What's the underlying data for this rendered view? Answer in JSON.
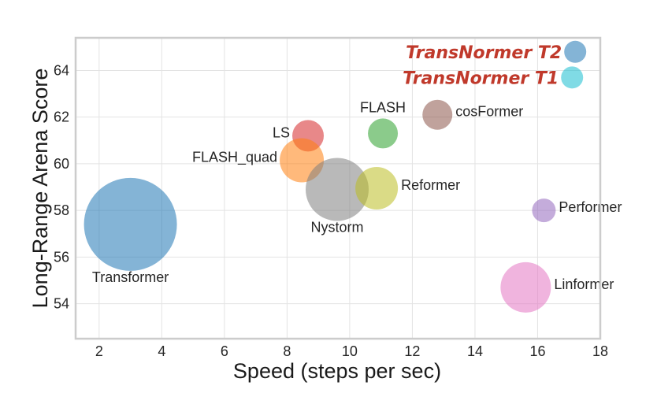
{
  "chart_data": {
    "type": "scatter",
    "subtype": "bubble",
    "title": "",
    "xlabel": "Speed (steps per sec)",
    "ylabel": "Long-Range Arena Score",
    "xlim": [
      1.25,
      18
    ],
    "ylim": [
      52.5,
      65.4
    ],
    "xticks": [
      2,
      4,
      6,
      8,
      10,
      12,
      14,
      16,
      18
    ],
    "yticks": [
      54,
      56,
      58,
      60,
      62,
      64
    ],
    "grid": true,
    "legend": null,
    "points": [
      {
        "name": "Transformer",
        "x": 3.0,
        "y": 57.4,
        "radius_px": 59,
        "color": "#1f77b4",
        "label_pos": "below",
        "highlight": false
      },
      {
        "name": "LS",
        "x": 8.67,
        "y": 61.2,
        "radius_px": 20,
        "color": "#d62728",
        "label_pos": "left",
        "highlight": false
      },
      {
        "name": "FLASH_quad",
        "x": 8.47,
        "y": 60.15,
        "radius_px": 28,
        "color": "#ff7f0e",
        "label_pos": "left",
        "highlight": false
      },
      {
        "name": "Nystorm",
        "x": 9.6,
        "y": 58.9,
        "radius_px": 40,
        "color": "#7f7f7f",
        "label_pos": "below",
        "highlight": false
      },
      {
        "name": "Reformer",
        "x": 10.86,
        "y": 58.95,
        "radius_px": 27,
        "color": "#bcbd22",
        "label_pos": "right",
        "highlight": false
      },
      {
        "name": "FLASH",
        "x": 11.06,
        "y": 61.3,
        "radius_px": 19,
        "color": "#2ca02c",
        "label_pos": "above",
        "highlight": false
      },
      {
        "name": "cosFormer",
        "x": 12.8,
        "y": 62.1,
        "radius_px": 19,
        "color": "#8c564b",
        "label_pos": "right",
        "highlight": false
      },
      {
        "name": "Performer",
        "x": 16.2,
        "y": 58.0,
        "radius_px": 15,
        "color": "#9467bd",
        "label_pos": "right",
        "highlight": false
      },
      {
        "name": "Linformer",
        "x": 15.62,
        "y": 54.7,
        "radius_px": 32,
        "color": "#e377c2",
        "label_pos": "right",
        "highlight": false
      },
      {
        "name": "TransNormer T2",
        "x": 17.2,
        "y": 64.8,
        "radius_px": 14,
        "color": "#1f77b4",
        "label_pos": "left",
        "highlight": true
      },
      {
        "name": "TransNormer T1",
        "x": 17.1,
        "y": 63.7,
        "radius_px": 14,
        "color": "#17becf",
        "label_pos": "left",
        "highlight": true
      }
    ],
    "highlight_color": "#c0392b",
    "bubble_alpha": 0.55
  }
}
